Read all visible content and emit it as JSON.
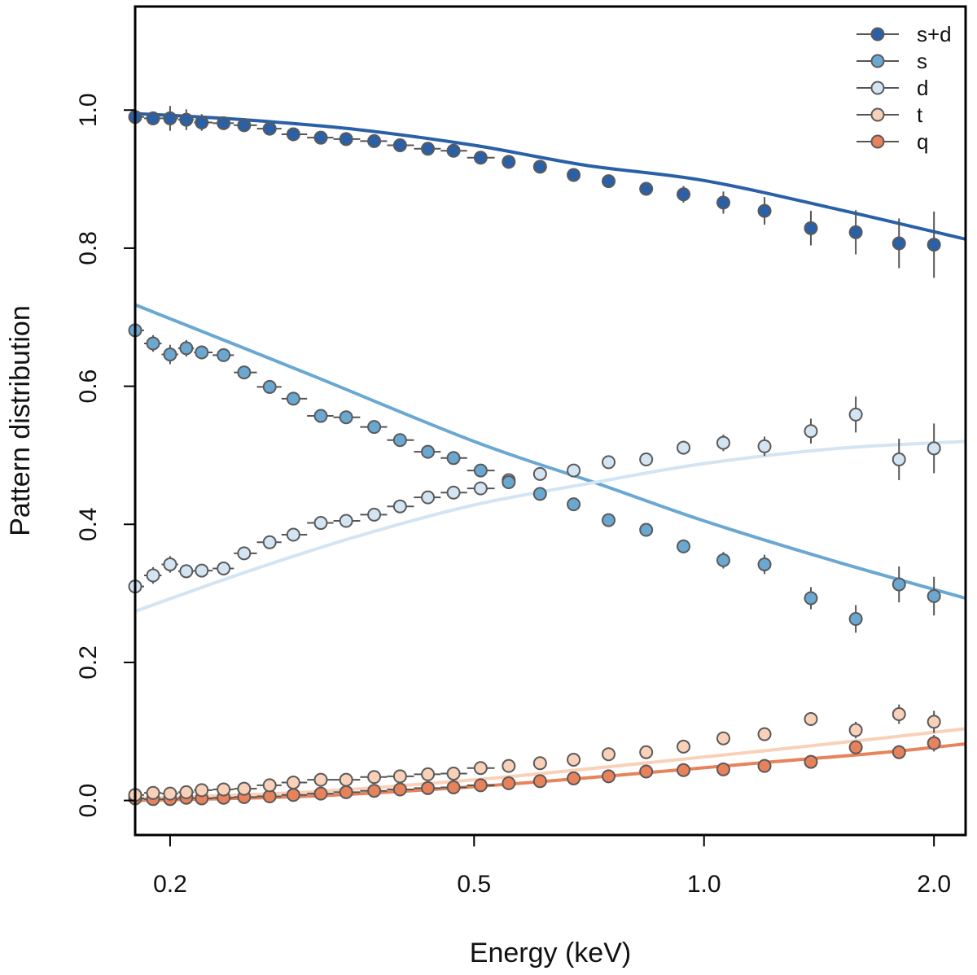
{
  "chart_data": {
    "type": "scatter",
    "title": "",
    "xlabel": "Energy (keV)",
    "ylabel": "Pattern distribution",
    "xscale": "log",
    "xlim": [
      0.18,
      2.2
    ],
    "ylim": [
      -0.05,
      1.15
    ],
    "xticks": [
      {
        "value": 0.2,
        "label": "0.2"
      },
      {
        "value": 0.5,
        "label": "0.5"
      },
      {
        "value": 1.0,
        "label": "1.0"
      },
      {
        "value": 2.0,
        "label": "2.0"
      }
    ],
    "yticks": [
      {
        "value": 0.0,
        "label": "0.0"
      },
      {
        "value": 0.2,
        "label": "0.2"
      },
      {
        "value": 0.4,
        "label": "0.4"
      },
      {
        "value": 0.6,
        "label": "0.6"
      },
      {
        "value": 0.8,
        "label": "0.8"
      },
      {
        "value": 1.0,
        "label": "1.0"
      }
    ],
    "legend_position": "top-right",
    "x": [
      0.18,
      0.19,
      0.2,
      0.21,
      0.22,
      0.235,
      0.25,
      0.27,
      0.29,
      0.315,
      0.34,
      0.37,
      0.4,
      0.435,
      0.47,
      0.51,
      0.555,
      0.61,
      0.675,
      0.75,
      0.84,
      0.94,
      1.06,
      1.2,
      1.38,
      1.58,
      1.8,
      2.0
    ],
    "series": [
      {
        "name": "s+d",
        "color": "#2a60a8",
        "values": [
          0.99,
          0.988,
          0.988,
          0.986,
          0.982,
          0.981,
          0.978,
          0.973,
          0.965,
          0.96,
          0.958,
          0.955,
          0.949,
          0.944,
          0.941,
          0.931,
          0.925,
          0.918,
          0.906,
          0.897,
          0.886,
          0.878,
          0.866,
          0.854,
          0.829,
          0.823,
          0.807,
          0.805
        ],
        "errors": [
          0.01,
          0.01,
          0.018,
          0.015,
          0.012,
          0.008,
          0.007,
          0.006,
          0.006,
          0.006,
          0.006,
          0.006,
          0.006,
          0.006,
          0.006,
          0.006,
          0.007,
          0.007,
          0.008,
          0.009,
          0.01,
          0.012,
          0.016,
          0.02,
          0.025,
          0.032,
          0.036,
          0.048
        ],
        "model": [
          [
            0.18,
            0.995
          ],
          [
            0.25,
            0.986
          ],
          [
            0.35,
            0.972
          ],
          [
            0.5,
            0.949
          ],
          [
            0.7,
            0.92
          ],
          [
            1.0,
            0.898
          ],
          [
            1.5,
            0.856
          ],
          [
            2.2,
            0.813
          ]
        ]
      },
      {
        "name": "s",
        "color": "#6aa8d2",
        "values": [
          0.681,
          0.662,
          0.646,
          0.655,
          0.649,
          0.645,
          0.62,
          0.599,
          0.582,
          0.557,
          0.555,
          0.541,
          0.522,
          0.505,
          0.496,
          0.478,
          0.461,
          0.444,
          0.429,
          0.406,
          0.392,
          0.368,
          0.348,
          0.342,
          0.293,
          0.263,
          0.313,
          0.296
        ],
        "errors": [
          0.01,
          0.012,
          0.014,
          0.012,
          0.01,
          0.008,
          0.007,
          0.006,
          0.006,
          0.006,
          0.006,
          0.006,
          0.006,
          0.006,
          0.006,
          0.006,
          0.006,
          0.007,
          0.007,
          0.008,
          0.009,
          0.01,
          0.012,
          0.014,
          0.016,
          0.02,
          0.026,
          0.028
        ],
        "model": [
          [
            0.18,
            0.718
          ],
          [
            0.3,
            0.62
          ],
          [
            0.5,
            0.52
          ],
          [
            0.73,
            0.458
          ],
          [
            1.0,
            0.405
          ],
          [
            1.5,
            0.345
          ],
          [
            2.2,
            0.293
          ]
        ]
      },
      {
        "name": "d",
        "color": "#d3e4f2",
        "values": [
          0.31,
          0.326,
          0.342,
          0.332,
          0.333,
          0.336,
          0.358,
          0.374,
          0.385,
          0.402,
          0.405,
          0.414,
          0.426,
          0.439,
          0.446,
          0.452,
          0.464,
          0.473,
          0.478,
          0.49,
          0.494,
          0.511,
          0.518,
          0.513,
          0.535,
          0.559,
          0.494,
          0.51
        ],
        "errors": [
          0.01,
          0.012,
          0.012,
          0.01,
          0.008,
          0.007,
          0.006,
          0.006,
          0.006,
          0.006,
          0.006,
          0.006,
          0.006,
          0.006,
          0.006,
          0.006,
          0.006,
          0.007,
          0.007,
          0.008,
          0.009,
          0.01,
          0.012,
          0.014,
          0.018,
          0.026,
          0.03,
          0.036
        ],
        "model": [
          [
            0.18,
            0.274
          ],
          [
            0.25,
            0.33
          ],
          [
            0.35,
            0.382
          ],
          [
            0.5,
            0.428
          ],
          [
            0.73,
            0.462
          ],
          [
            1.0,
            0.488
          ],
          [
            1.5,
            0.51
          ],
          [
            2.2,
            0.52
          ]
        ]
      },
      {
        "name": "t",
        "color": "#f9d0b8",
        "values": [
          0.008,
          0.011,
          0.01,
          0.012,
          0.015,
          0.016,
          0.017,
          0.022,
          0.026,
          0.03,
          0.03,
          0.034,
          0.035,
          0.038,
          0.039,
          0.047,
          0.05,
          0.054,
          0.059,
          0.067,
          0.07,
          0.078,
          0.09,
          0.096,
          0.118,
          0.102,
          0.125,
          0.114
        ],
        "errors": [
          0.004,
          0.004,
          0.004,
          0.004,
          0.004,
          0.004,
          0.004,
          0.004,
          0.004,
          0.004,
          0.004,
          0.004,
          0.004,
          0.004,
          0.004,
          0.004,
          0.004,
          0.004,
          0.005,
          0.005,
          0.005,
          0.006,
          0.007,
          0.008,
          0.01,
          0.012,
          0.014,
          0.016
        ],
        "model": [
          [
            0.18,
            0.003
          ],
          [
            0.3,
            0.012
          ],
          [
            0.5,
            0.03
          ],
          [
            0.8,
            0.052
          ],
          [
            1.2,
            0.072
          ],
          [
            1.7,
            0.09
          ],
          [
            2.2,
            0.104
          ]
        ]
      },
      {
        "name": "q",
        "color": "#e8825a",
        "values": [
          0.003,
          0.002,
          0.002,
          0.004,
          0.003,
          0.004,
          0.005,
          0.006,
          0.008,
          0.01,
          0.012,
          0.014,
          0.016,
          0.018,
          0.019,
          0.022,
          0.025,
          0.028,
          0.032,
          0.035,
          0.042,
          0.044,
          0.045,
          0.05,
          0.056,
          0.077,
          0.07,
          0.083
        ],
        "errors": [
          0.003,
          0.003,
          0.003,
          0.003,
          0.003,
          0.003,
          0.003,
          0.003,
          0.003,
          0.003,
          0.003,
          0.003,
          0.003,
          0.003,
          0.003,
          0.003,
          0.003,
          0.003,
          0.004,
          0.004,
          0.004,
          0.005,
          0.005,
          0.006,
          0.007,
          0.01,
          0.01,
          0.012
        ],
        "model": [
          [
            0.18,
            0.0
          ],
          [
            0.3,
            0.006
          ],
          [
            0.5,
            0.02
          ],
          [
            0.8,
            0.038
          ],
          [
            1.2,
            0.055
          ],
          [
            1.7,
            0.069
          ],
          [
            2.2,
            0.082
          ]
        ]
      }
    ]
  }
}
